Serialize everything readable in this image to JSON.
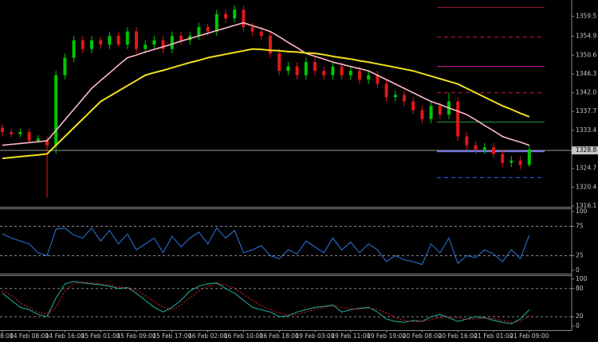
{
  "chart_data": [
    {
      "type": "candlestick",
      "ylim": [
        1316.1,
        1363.2
      ],
      "yticks": [
        1359.5,
        1354.9,
        1350.6,
        1346.3,
        {
          "value": 1342.0,
          "label": "1342.0"
        },
        1337.7,
        1333.4,
        1324.7,
        1320.4,
        1316.1
      ],
      "up_color": "#00c800",
      "down_color": "#e01818",
      "open": [
        1334,
        1333,
        1332.5,
        1333,
        1331,
        1331,
        1330,
        1346,
        1350,
        1354,
        1352,
        1354,
        1353,
        1355,
        1353,
        1356,
        1352,
        1353,
        1354,
        1352,
        1355,
        1354,
        1355,
        1357,
        1356,
        1360,
        1359,
        1361,
        1357,
        1356,
        1355,
        1351,
        1347,
        1348,
        1346,
        1349,
        1347,
        1346,
        1348,
        1346,
        1347,
        1345,
        1346,
        1344,
        1341,
        1341.5,
        1340,
        1338,
        1336,
        1339,
        1337,
        1340,
        1332,
        1330,
        1329,
        1329.5,
        1328,
        1326,
        1326.5,
        1325.5
      ],
      "high": [
        1334.8,
        1333.8,
        1333.8,
        1333.8,
        1332.3,
        1332,
        1347,
        1351,
        1355,
        1355,
        1355,
        1354.8,
        1356,
        1355.8,
        1357,
        1357,
        1354,
        1355,
        1355,
        1356,
        1356,
        1356,
        1358,
        1357.8,
        1361,
        1361,
        1362,
        1361.8,
        1358,
        1357,
        1356,
        1352,
        1349,
        1349,
        1350,
        1350,
        1348,
        1349,
        1349,
        1348,
        1348,
        1347,
        1347,
        1345,
        1342.5,
        1342.5,
        1341,
        1339,
        1340,
        1340,
        1342,
        1341,
        1333,
        1331,
        1330.5,
        1330.5,
        1329,
        1327.5,
        1327.5,
        1330
      ],
      "low": [
        1332,
        1331.8,
        1331.8,
        1330.5,
        1330.5,
        1318,
        1328,
        1345,
        1349,
        1351,
        1351,
        1352,
        1352,
        1352.5,
        1352,
        1351,
        1351,
        1352,
        1351,
        1351,
        1353,
        1353,
        1354,
        1355,
        1355,
        1358,
        1358,
        1356,
        1355,
        1354,
        1350,
        1346,
        1346,
        1345,
        1345,
        1346,
        1345,
        1345,
        1345,
        1345,
        1344,
        1344,
        1343,
        1340,
        1340,
        1339,
        1337,
        1335,
        1335,
        1336,
        1336,
        1331,
        1329,
        1328,
        1328,
        1327,
        1325,
        1325,
        1324.5,
        1325
      ],
      "close": [
        1333,
        1332.5,
        1333,
        1331,
        1331.5,
        1330,
        1346,
        1350,
        1354,
        1352,
        1354,
        1353,
        1355,
        1353,
        1356,
        1352,
        1353,
        1354,
        1352,
        1355,
        1354,
        1355,
        1357,
        1356,
        1360,
        1359,
        1361,
        1357,
        1356,
        1355,
        1351,
        1347,
        1348,
        1346,
        1349,
        1347,
        1346,
        1348,
        1346,
        1347,
        1345,
        1346,
        1344,
        1341,
        1341.5,
        1340,
        1338,
        1336,
        1339,
        1337,
        1340,
        1332,
        1330,
        1329,
        1329.5,
        1328,
        1326,
        1326.5,
        1325.5,
        1329
      ],
      "series": [
        {
          "color": "#ffb6c8",
          "values": [
            1330,
            1330.2,
            1330.4,
            1330.6,
            1330.8,
            1331,
            1333.4,
            1335.8,
            1338.2,
            1340.6,
            1343,
            1344.8,
            1346.5,
            1348.3,
            1350,
            1350.6,
            1351.3,
            1351.9,
            1352.5,
            1353.1,
            1353.8,
            1354.4,
            1355,
            1355.6,
            1356.2,
            1356.8,
            1357.4,
            1358,
            1357.3,
            1356.7,
            1356,
            1354.8,
            1353.5,
            1352.3,
            1351,
            1350.3,
            1349.7,
            1349,
            1348.5,
            1348,
            1347.5,
            1347,
            1346,
            1345,
            1344,
            1343,
            1342,
            1341,
            1340,
            1339.3,
            1338.5,
            1337.8,
            1337,
            1335.8,
            1334.5,
            1333.3,
            1332,
            1331.3,
            1330.7,
            1330
          ]
        },
        {
          "color": "#f0e020",
          "values": [
            1327,
            1327.2,
            1327.4,
            1327.6,
            1327.8,
            1328,
            1330,
            1332,
            1334,
            1336,
            1338,
            1340,
            1341.2,
            1342.4,
            1343.6,
            1344.8,
            1346,
            1346.6,
            1347.1,
            1347.7,
            1348.3,
            1348.9,
            1349.4,
            1350,
            1350.4,
            1350.8,
            1351.2,
            1351.6,
            1352,
            1351.9,
            1351.7,
            1351.6,
            1351.4,
            1351.3,
            1351.1,
            1351,
            1350.7,
            1350.3,
            1350,
            1349.7,
            1349.3,
            1349,
            1348.6,
            1348.2,
            1347.8,
            1347.4,
            1347,
            1346.4,
            1345.8,
            1345.2,
            1344.6,
            1344,
            1343,
            1342,
            1341,
            1340,
            1339,
            1338.2,
            1337.3,
            1336.5
          ]
        }
      ],
      "levels": [
        {
          "value": 1361.5,
          "color": "#a01830",
          "style": "solid"
        },
        {
          "value": 1354.7,
          "color": "#c02040",
          "style": "dashed"
        },
        {
          "value": 1348.0,
          "color": "#e020a0",
          "style": "solid"
        },
        {
          "value": 1342.0,
          "color": "#c02040",
          "style": "dashed"
        },
        {
          "value": 1335.3,
          "color": "#20a040",
          "style": "solid"
        },
        {
          "value": 1328.6,
          "color": "#7070ff",
          "style": "solid"
        },
        {
          "value": 1322.6,
          "color": "#4060ff",
          "style": "dashed"
        }
      ],
      "last_price": 1328.8
    },
    {
      "type": "line",
      "ylim": [
        0,
        100
      ],
      "yticks": [
        0,
        25,
        75,
        100
      ],
      "levels": [
        25,
        75
      ],
      "series": [
        {
          "color": "#2a78e0",
          "values": [
            62,
            55,
            50,
            45,
            30,
            25,
            70,
            72,
            60,
            55,
            72,
            50,
            68,
            45,
            62,
            35,
            45,
            55,
            30,
            58,
            40,
            55,
            65,
            45,
            72,
            55,
            68,
            30,
            35,
            42,
            25,
            20,
            35,
            28,
            50,
            40,
            30,
            55,
            35,
            48,
            30,
            45,
            35,
            15,
            25,
            18,
            15,
            10,
            45,
            30,
            55,
            12,
            25,
            22,
            35,
            28,
            15,
            35,
            20,
            60
          ]
        }
      ]
    },
    {
      "type": "line",
      "ylim": [
        0,
        100
      ],
      "yticks": [
        0,
        20,
        80,
        100
      ],
      "levels": [
        20,
        80
      ],
      "categories": [
        "8:00",
        null,
        null,
        "14 Feb 08:00",
        null,
        null,
        null,
        "14 Feb 16:00",
        null,
        null,
        null,
        "15 Feb 01:00",
        null,
        null,
        null,
        "15 Feb 09:00",
        null,
        null,
        null,
        "15 Feb 17:00",
        null,
        null,
        null,
        "16 Feb 02:00",
        null,
        null,
        null,
        "16 Feb 10:00",
        null,
        null,
        null,
        "16 Feb 18:00",
        null,
        null,
        null,
        "19 Feb 03:00",
        null,
        null,
        null,
        "19 Feb 11:00",
        null,
        null,
        null,
        "19 Feb 19:00",
        null,
        null,
        null,
        "20 Feb 08:00",
        null,
        null,
        null,
        "20 Feb 16:00",
        null,
        null,
        null,
        "21 Feb 01:00",
        null,
        null,
        null,
        "21 Feb 09:00"
      ],
      "series": [
        {
          "color": "#20b0a0",
          "style": "solid",
          "values": [
            70,
            55,
            40,
            35,
            25,
            20,
            60,
            90,
            95,
            92,
            90,
            88,
            85,
            80,
            82,
            70,
            55,
            40,
            30,
            40,
            55,
            75,
            85,
            90,
            92,
            80,
            70,
            55,
            40,
            35,
            30,
            20,
            22,
            30,
            35,
            40,
            42,
            45,
            30,
            35,
            38,
            40,
            30,
            15,
            10,
            8,
            12,
            10,
            20,
            25,
            18,
            10,
            15,
            20,
            18,
            12,
            8,
            5,
            15,
            35
          ]
        },
        {
          "color": "#e02020",
          "style": "dashed",
          "values": [
            75,
            65,
            50,
            40,
            30,
            25,
            40,
            75,
            90,
            94,
            92,
            90,
            87,
            83,
            82,
            76,
            65,
            52,
            40,
            35,
            45,
            60,
            75,
            85,
            90,
            88,
            80,
            68,
            55,
            43,
            35,
            28,
            24,
            25,
            30,
            36,
            40,
            43,
            40,
            37,
            36,
            38,
            36,
            28,
            18,
            12,
            10,
            10,
            14,
            18,
            20,
            18,
            15,
            15,
            17,
            16,
            12,
            8,
            10,
            22
          ]
        }
      ]
    }
  ]
}
